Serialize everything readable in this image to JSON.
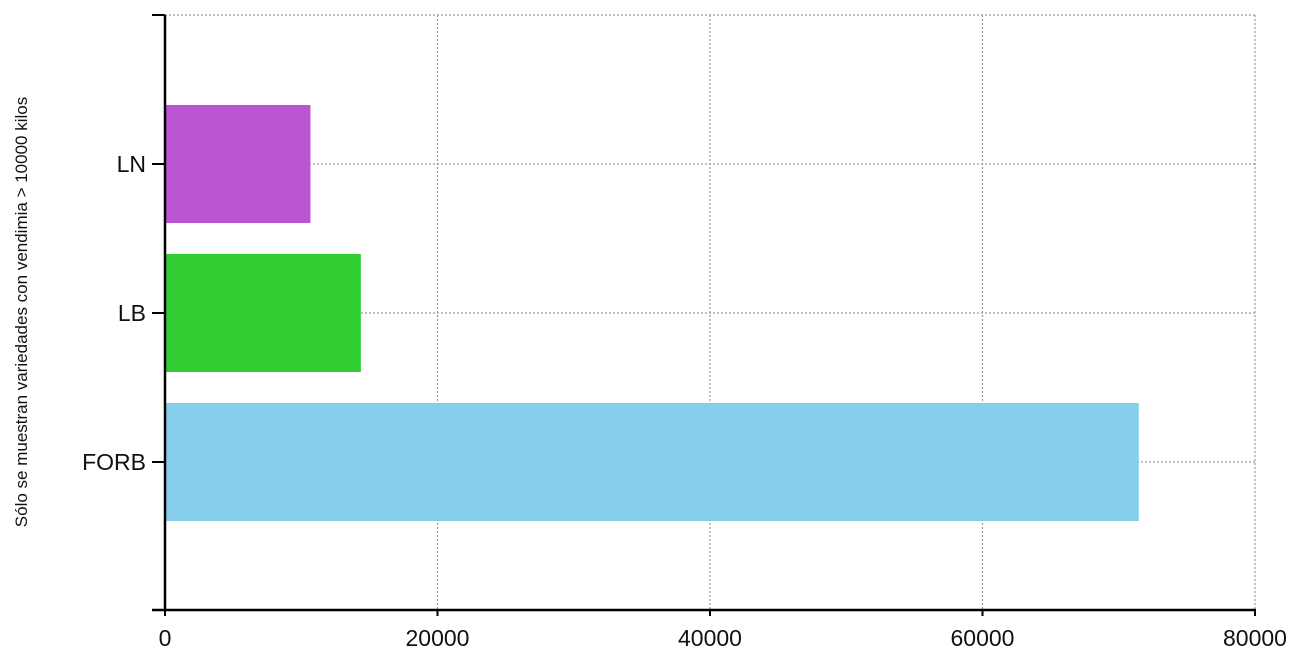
{
  "chart_data": {
    "type": "bar",
    "orientation": "horizontal",
    "categories": [
      "LN",
      "LB",
      "FORB"
    ],
    "values": [
      10600,
      14300,
      71400
    ],
    "colors": [
      "#BA55D3",
      "#32CD32",
      "#87CEEB"
    ],
    "title": "",
    "xlabel": "",
    "ylabel": "Sólo se muestran variedades con vendimia > 10000 kilos",
    "xlim": [
      0,
      80000
    ],
    "xticks": [
      "0",
      "20000",
      "40000",
      "60000",
      "80000"
    ],
    "grid": true
  }
}
